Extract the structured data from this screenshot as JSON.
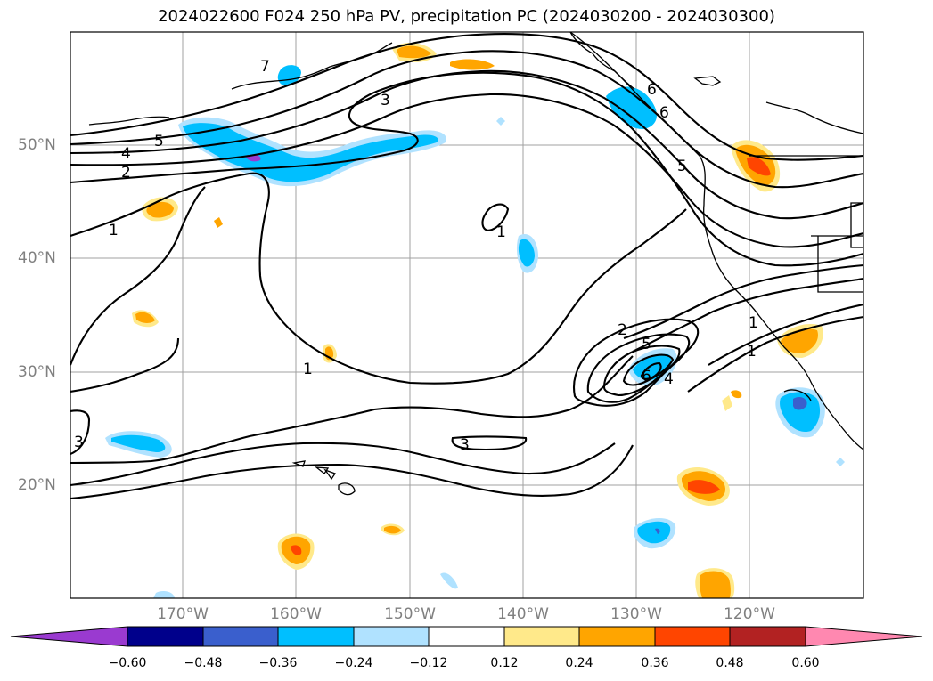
{
  "title": "2024022600 F024 250 hPa PV, precipitation PC (2024030200 - 2024030300)",
  "lon_labels": [
    "170°W",
    "160°W",
    "150°W",
    "140°W",
    "130°W",
    "120°W"
  ],
  "lat_labels": [
    "50°N",
    "40°N",
    "30°N",
    "20°N"
  ],
  "colorbar": {
    "ticks": [
      "−0.60",
      "−0.48",
      "−0.36",
      "−0.24",
      "−0.12",
      "0.12",
      "0.24",
      "0.36",
      "0.48",
      "0.60"
    ],
    "colors": [
      "#9a3ad0",
      "#00008b",
      "#3a5fcd",
      "#00bfff",
      "#b0e2ff",
      "#ffffff",
      "#ffe98a",
      "#ffa500",
      "#ff4500",
      "#b22222",
      "#ff88b0"
    ]
  },
  "contour_labels": [
    "7",
    "6",
    "3",
    "5",
    "4",
    "2",
    "1",
    "6",
    "5",
    "1",
    "1",
    "2",
    "5",
    "6",
    "4",
    "1",
    "1",
    "3",
    "3"
  ],
  "map": {
    "extent_lon": [
      -180,
      -110
    ],
    "extent_lat": [
      10,
      60
    ],
    "gridlines": true,
    "grid_color": "#a0a0a0"
  }
}
